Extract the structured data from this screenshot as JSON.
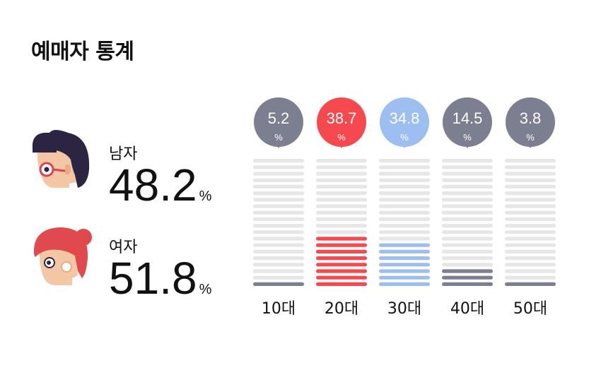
{
  "title": "예매자 통계",
  "gender": {
    "male": {
      "label": "남자",
      "value": "48.2",
      "unit": "%"
    },
    "female": {
      "label": "여자",
      "value": "51.8",
      "unit": "%"
    }
  },
  "colors": {
    "empty_segment": "#e6e6e6",
    "default_fill": "#7c7f90",
    "highlight_fill": "#f5484f",
    "secondary_fill": "#9dbef0"
  },
  "chart_data": {
    "type": "bar",
    "categories": [
      "10대",
      "20대",
      "30대",
      "40대",
      "50대"
    ],
    "values": [
      5.2,
      38.7,
      34.8,
      14.5,
      3.8
    ],
    "value_labels": [
      "5.2",
      "38.7",
      "34.8",
      "14.5",
      "3.8"
    ],
    "unit": "%",
    "colors": [
      "#7c7f90",
      "#f5484f",
      "#9dbef0",
      "#7c7f90",
      "#7c7f90"
    ],
    "ylim": [
      0,
      100
    ]
  }
}
